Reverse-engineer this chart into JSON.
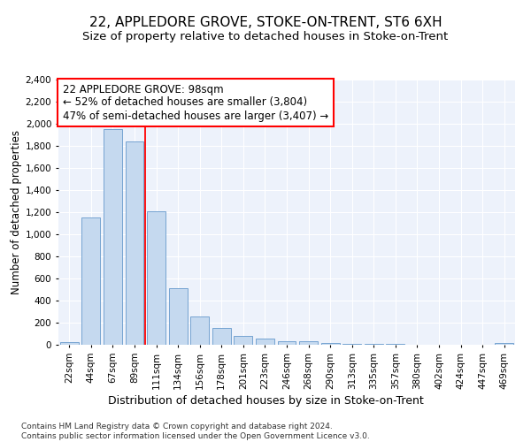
{
  "title": "22, APPLEDORE GROVE, STOKE-ON-TRENT, ST6 6XH",
  "subtitle": "Size of property relative to detached houses in Stoke-on-Trent",
  "xlabel": "Distribution of detached houses by size in Stoke-on-Trent",
  "ylabel": "Number of detached properties",
  "categories": [
    "22sqm",
    "44sqm",
    "67sqm",
    "89sqm",
    "111sqm",
    "134sqm",
    "156sqm",
    "178sqm",
    "201sqm",
    "223sqm",
    "246sqm",
    "268sqm",
    "290sqm",
    "313sqm",
    "335sqm",
    "357sqm",
    "380sqm",
    "402sqm",
    "424sqm",
    "447sqm",
    "469sqm"
  ],
  "values": [
    25,
    1150,
    1950,
    1840,
    1210,
    510,
    260,
    155,
    80,
    55,
    35,
    35,
    15,
    8,
    5,
    5,
    4,
    3,
    3,
    2,
    18
  ],
  "bar_color": "#c5d9ef",
  "bar_edge_color": "#6699cc",
  "vline_x": 3.5,
  "vline_color": "red",
  "annotation_text": "22 APPLEDORE GROVE: 98sqm\n← 52% of detached houses are smaller (3,804)\n47% of semi-detached houses are larger (3,407) →",
  "annotation_box_color": "white",
  "annotation_box_edge_color": "red",
  "ylim": [
    0,
    2400
  ],
  "yticks": [
    0,
    200,
    400,
    600,
    800,
    1000,
    1200,
    1400,
    1600,
    1800,
    2000,
    2200,
    2400
  ],
  "footer_text": "Contains HM Land Registry data © Crown copyright and database right 2024.\nContains public sector information licensed under the Open Government Licence v3.0.",
  "background_color": "#edf2fb",
  "title_fontsize": 11,
  "subtitle_fontsize": 9.5,
  "xlabel_fontsize": 9,
  "ylabel_fontsize": 8.5,
  "tick_fontsize": 7.5,
  "annotation_fontsize": 8.5,
  "footer_fontsize": 6.5
}
